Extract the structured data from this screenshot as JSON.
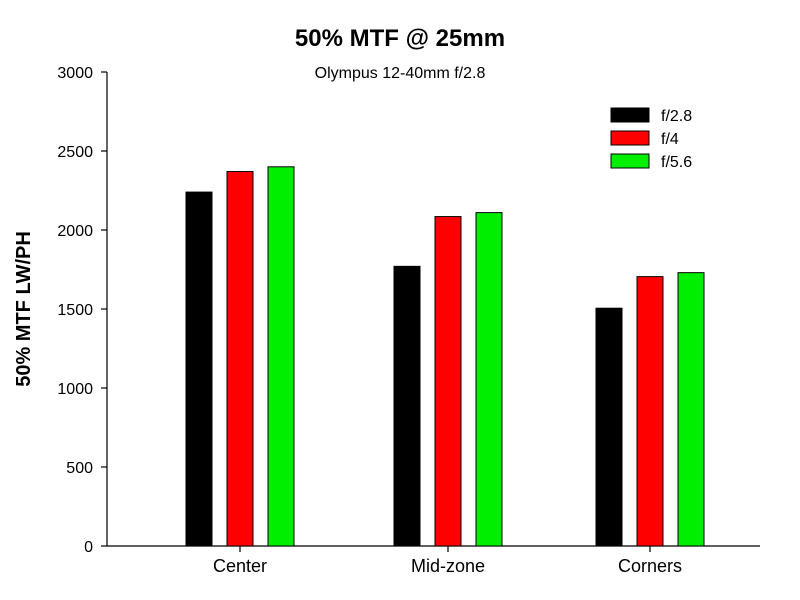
{
  "chart_data": {
    "type": "bar",
    "title": "50% MTF @ 25mm",
    "subtitle": "Olympus 12-40mm f/2.8",
    "xlabel": "",
    "ylabel": "50% MTF LW/PH",
    "ylim": [
      0,
      3000
    ],
    "yticks": [
      "0",
      "500",
      "1000",
      "1500",
      "2000",
      "2500",
      "3000"
    ],
    "categories": [
      "Center",
      "Mid-zone",
      "Corners"
    ],
    "series": [
      {
        "name": "f/2.8",
        "color": "#000000",
        "values": [
          2240,
          1770,
          1505
        ]
      },
      {
        "name": "f/4",
        "color": "#ff0000",
        "values": [
          2370,
          2085,
          1705
        ]
      },
      {
        "name": "f/5.6",
        "color": "#00ee00",
        "values": [
          2400,
          2110,
          1730
        ]
      }
    ],
    "legend_position": "top-right",
    "grid": false
  }
}
